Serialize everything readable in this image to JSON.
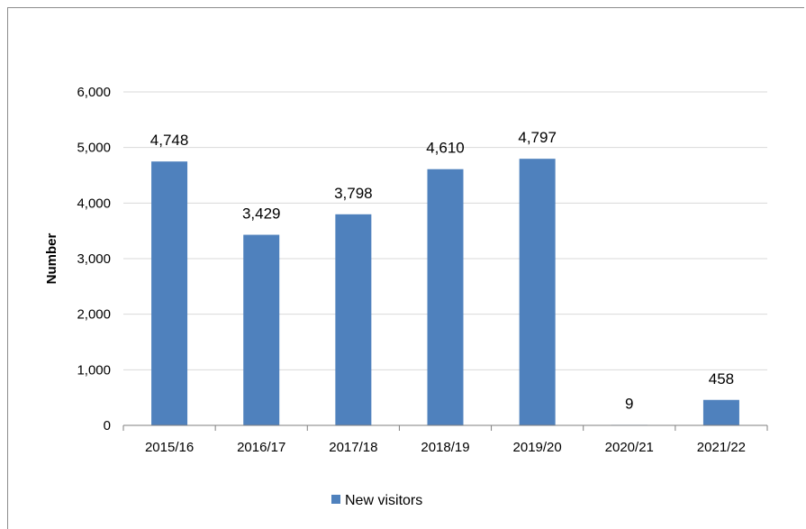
{
  "chart_data": {
    "type": "bar",
    "categories": [
      "2015/16",
      "2016/17",
      "2017/18",
      "2018/19",
      "2019/20",
      "2020/21",
      "2021/22"
    ],
    "series": [
      {
        "name": "New visitors",
        "values": [
          4748,
          3429,
          3798,
          4610,
          4797,
          9,
          458
        ]
      }
    ],
    "data_labels": [
      "4,748",
      "3,429",
      "3,798",
      "4,610",
      "4,797",
      "9",
      "458"
    ],
    "y_ticks": [
      "0",
      "1,000",
      "2,000",
      "3,000",
      "4,000",
      "5,000",
      "6,000"
    ],
    "xlabel": "",
    "ylabel": "Number",
    "ylim": [
      0,
      6000
    ],
    "grid": true,
    "legend_position": "bottom",
    "bar_color": "#4f81bd"
  }
}
